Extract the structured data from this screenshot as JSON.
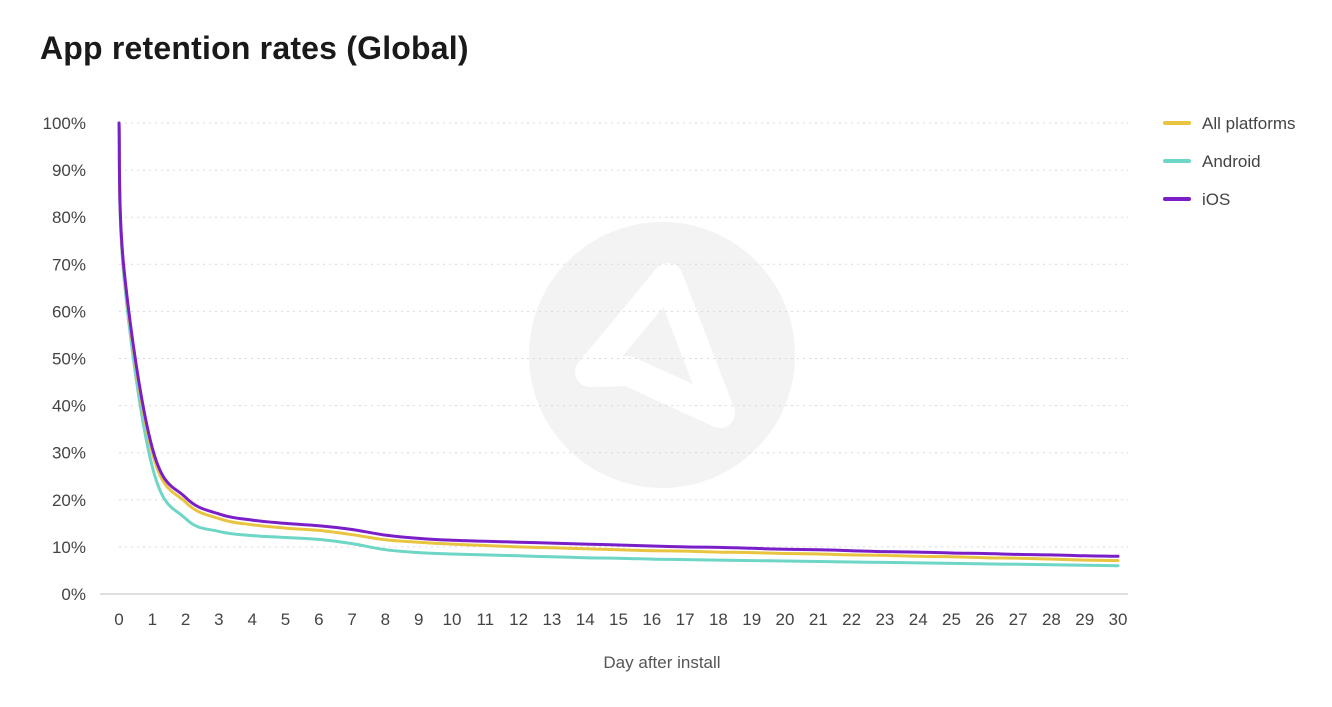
{
  "chart_data": {
    "type": "line",
    "title": "App retention rates (Global)",
    "xlabel": "Day after install",
    "ylabel": "",
    "xlim": [
      0,
      30
    ],
    "ylim": [
      0,
      100
    ],
    "y_tick_values": [
      0,
      10,
      20,
      30,
      40,
      50,
      60,
      70,
      80,
      90,
      100
    ],
    "y_tick_labels": [
      "0%",
      "10%",
      "20%",
      "30%",
      "40%",
      "50%",
      "60%",
      "70%",
      "80%",
      "90%",
      "100%"
    ],
    "x_tick_values": [
      0,
      1,
      2,
      3,
      4,
      5,
      6,
      7,
      8,
      9,
      10,
      11,
      12,
      13,
      14,
      15,
      16,
      17,
      18,
      19,
      20,
      21,
      22,
      23,
      24,
      25,
      26,
      27,
      28,
      29,
      30
    ],
    "x_tick_labels": [
      "0",
      "1",
      "2",
      "3",
      "4",
      "5",
      "6",
      "7",
      "8",
      "9",
      "10",
      "11",
      "12",
      "13",
      "14",
      "15",
      "16",
      "17",
      "18",
      "19",
      "20",
      "21",
      "22",
      "23",
      "24",
      "25",
      "26",
      "27",
      "28",
      "29",
      "30"
    ],
    "grid": true,
    "legend_position": "top-right",
    "x": [
      0,
      1,
      2,
      3,
      4,
      5,
      6,
      7,
      8,
      9,
      10,
      11,
      12,
      13,
      14,
      15,
      16,
      17,
      18,
      19,
      20,
      21,
      22,
      23,
      24,
      25,
      26,
      27,
      28,
      29,
      30
    ],
    "series": [
      {
        "name": "All platforms",
        "color": "#e8c440",
        "start_value": 100,
        "values": [
          100,
          30,
          19.5,
          16,
          14.7,
          14,
          13.5,
          12.6,
          11.5,
          11,
          10.6,
          10.3,
          10,
          9.8,
          9.6,
          9.4,
          9.2,
          9.1,
          8.9,
          8.8,
          8.6,
          8.5,
          8.3,
          8.2,
          8.0,
          7.9,
          7.7,
          7.6,
          7.4,
          7.2,
          7.1
        ]
      },
      {
        "name": "Android",
        "color": "#6dd6c6",
        "start_value": 100,
        "values": [
          100,
          27,
          16,
          13.3,
          12.4,
          12,
          11.6,
          10.7,
          9.4,
          8.8,
          8.5,
          8.3,
          8.1,
          7.9,
          7.7,
          7.6,
          7.4,
          7.3,
          7.2,
          7.1,
          7.0,
          6.9,
          6.8,
          6.7,
          6.6,
          6.5,
          6.4,
          6.3,
          6.2,
          6.1,
          6.0
        ]
      },
      {
        "name": "iOS",
        "color": "#7a1fc8",
        "start_value": 100,
        "values": [
          100,
          31,
          20.5,
          17,
          15.7,
          15,
          14.5,
          13.7,
          12.5,
          11.8,
          11.4,
          11.2,
          11,
          10.8,
          10.6,
          10.4,
          10.2,
          10.0,
          9.9,
          9.7,
          9.5,
          9.4,
          9.2,
          9.0,
          8.9,
          8.7,
          8.6,
          8.4,
          8.3,
          8.1,
          8.0
        ]
      }
    ]
  }
}
